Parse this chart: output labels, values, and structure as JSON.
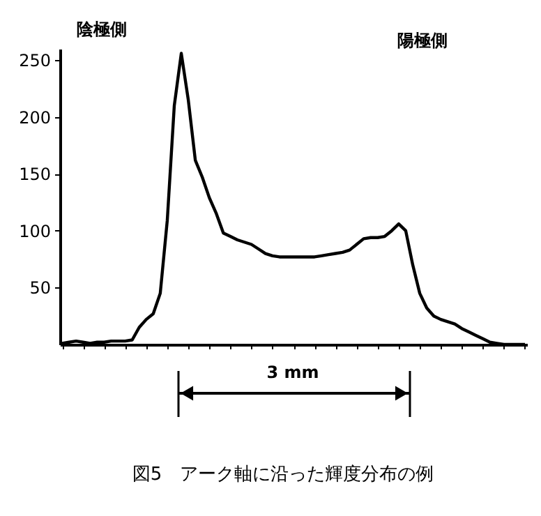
{
  "chart_data": {
    "type": "line",
    "title": "図5　アーク軸に沿った輝度分布の例",
    "categories": [
      null,
      null,
      null,
      null,
      null,
      null,
      null,
      null,
      null,
      null,
      null,
      null,
      null,
      null,
      null,
      null,
      null,
      null,
      null,
      null,
      null,
      null,
      null,
      null,
      null,
      null,
      null,
      null,
      null,
      null,
      null,
      null,
      null,
      null,
      null,
      null,
      null,
      null,
      null,
      null,
      null,
      null,
      null,
      null,
      null,
      null,
      null,
      null,
      null,
      null,
      null,
      null,
      null,
      null,
      null,
      null,
      null,
      null,
      null,
      null,
      null,
      null,
      null,
      null,
      null,
      null,
      null
    ],
    "series": [
      {
        "color": "#000000",
        "values": [
          1,
          2,
          3,
          2,
          1,
          2,
          2,
          3,
          3,
          3,
          4,
          15,
          22,
          27,
          45,
          109,
          210,
          256,
          215,
          162,
          147,
          129,
          115,
          98,
          95,
          92,
          90,
          88,
          84,
          80,
          78,
          77,
          77,
          77,
          77,
          77,
          77,
          78,
          79,
          80,
          81,
          83,
          88,
          93,
          94,
          94,
          95,
          100,
          106,
          100,
          70,
          45,
          32,
          25,
          22,
          20,
          18,
          14,
          11,
          8,
          5,
          2,
          1,
          0,
          0,
          0,
          0
        ]
      }
    ],
    "ylim": [
      0,
      260
    ],
    "yticks": [
      50,
      100,
      150,
      200,
      250
    ],
    "grid": false,
    "tick_labels": "y",
    "marker": "none",
    "line_style": "solid",
    "annotations": [
      "陰極側",
      "陽極側",
      "3 mm"
    ]
  }
}
